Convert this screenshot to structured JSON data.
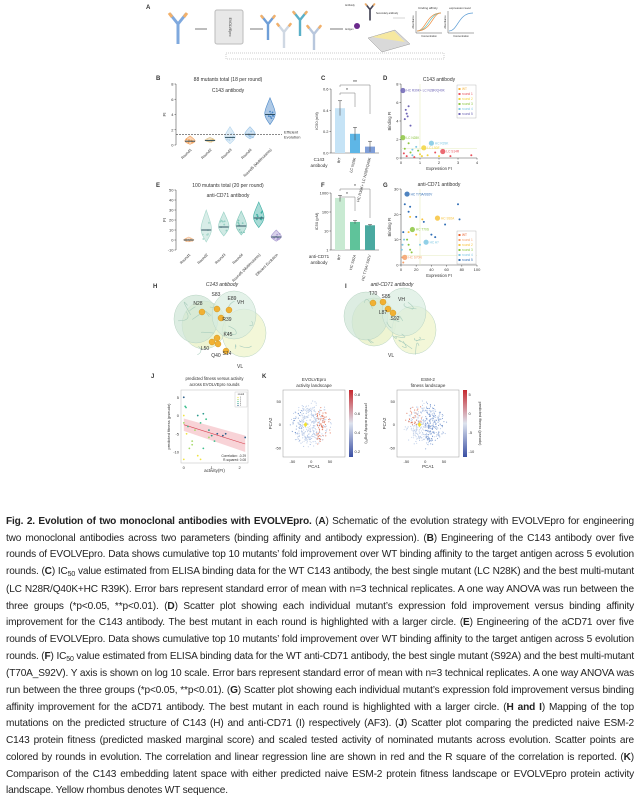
{
  "panels": {
    "A": {
      "label": "A",
      "screen_label": "EVOLVEpro",
      "assay_small": [
        "Antibody",
        "Secondary antibody",
        "Antigen"
      ],
      "plot1_title": "binding affinity",
      "plot2_title": "expression level",
      "plot_xlabel": "Concentration",
      "plot_ylabel": "Absorbance"
    },
    "B": {
      "label": "B",
      "title": "88 mutants total (18 per round)",
      "subtitle": "C143 antibody",
      "ylabel": "FI",
      "threshold_label": [
        "Efficient",
        "Evolution"
      ]
    },
    "C": {
      "label": "C",
      "ylabel": "IC50 (nM)",
      "group_label": [
        "C143",
        "antibody"
      ],
      "sig": [
        "*",
        "**"
      ]
    },
    "D": {
      "label": "D",
      "title": "C143 antibody",
      "xlabel": "Expression FI",
      "ylabel": "Binding FI"
    },
    "E": {
      "label": "E",
      "title": "100 mutants total (20 per round)",
      "subtitle": "anti-CD71 antibody",
      "ylabel": "FI"
    },
    "F": {
      "label": "F",
      "ylabel": "IC50 (pM)",
      "group_label": [
        "anti-CD71",
        "antibody"
      ],
      "sig": [
        "*",
        "*"
      ]
    },
    "G": {
      "label": "G",
      "title": "anti-CD71 antibody",
      "xlabel": "Expression FI",
      "ylabel": "Binding FI"
    },
    "H": {
      "label": "H",
      "title": "C143 antibody",
      "residues": [
        "S83",
        "N28",
        "E89",
        "R39",
        "K45",
        "L50",
        "Q40",
        "S14"
      ],
      "chains": [
        "VH",
        "VL"
      ]
    },
    "I": {
      "label": "I",
      "title": "anti-CD71 antibody",
      "residues": [
        "T70",
        "S85",
        "L87",
        "S92"
      ],
      "chains": [
        "VH",
        "VL"
      ]
    },
    "J": {
      "label": "J",
      "title": [
        "predicted fitness versus activity",
        "across EVOLVEpro rounds"
      ],
      "xlabel": "activity(FI)",
      "ylabel": "predicted fitness (pseudo)",
      "legend_title": "round",
      "stats": [
        "Correlation: -0.29",
        "R-squared: 0.08"
      ]
    },
    "K": {
      "label": "K",
      "left_title": [
        "EVOLVEpro",
        "activity landscape"
      ],
      "right_title": [
        "ESM-2",
        "fitness landscape"
      ],
      "xlabel": "PCA1",
      "ylabel": "PCA2",
      "left_cbar_label": "predicted activity (logFI)",
      "right_cbar_label": "predicted fitness (pseudo)"
    }
  },
  "chart_data": [
    {
      "panel": "B",
      "type": "violin",
      "categories": [
        "Round1",
        "Round2",
        "Round3",
        "Round4",
        "Round5 (Multimutants)"
      ],
      "medians": [
        0.5,
        0.6,
        1.0,
        1.4,
        4.0
      ],
      "maxima": [
        1.2,
        1.0,
        2.4,
        2.4,
        6.2
      ],
      "colors": [
        "#f3a35f",
        "#dcbf86",
        "#b8d7ee",
        "#9cc4e6",
        "#4b88c8"
      ],
      "threshold": 1.4,
      "ylim": [
        0,
        8
      ],
      "yticks": [
        0,
        2,
        4,
        6,
        8
      ]
    },
    {
      "panel": "C",
      "type": "bar",
      "categories": [
        "WT",
        "LC N28K",
        "HC R39K+ LC N28R/Q40K"
      ],
      "values": [
        0.42,
        0.18,
        0.06
      ],
      "errors": [
        0.07,
        0.06,
        0.05
      ],
      "colors": [
        "#c5e3f6",
        "#5eb6e6",
        "#7f9ed8"
      ],
      "ylim": [
        0,
        0.6
      ],
      "yticks": [
        "0.0",
        "0.2",
        "0.4",
        "0.6"
      ]
    },
    {
      "panel": "D",
      "type": "scatter",
      "xlim": [
        0,
        4
      ],
      "ylim": [
        0,
        8
      ],
      "xticks": [
        0,
        1,
        2,
        3,
        4
      ],
      "yticks": [
        0,
        2,
        4,
        6,
        8
      ],
      "legend": [
        "WT",
        "round 1",
        "round 2",
        "round 3",
        "round 4",
        "round 5"
      ],
      "legend_colors": [
        "#f5b33a",
        "#e8505b",
        "#f2d53c",
        "#8cc63f",
        "#7ec8e3",
        "#6c63b5"
      ],
      "highlight": [
        {
          "x": 0.1,
          "y": 7.3,
          "round": 5,
          "label": "HC R39K+ LC N28R/Q40K"
        },
        {
          "x": 0.1,
          "y": 2.2,
          "round": 3,
          "label": "LC N28K"
        },
        {
          "x": 1.6,
          "y": 1.6,
          "round": 4,
          "label": "HC R39K"
        },
        {
          "x": 1.2,
          "y": 1.1,
          "round": 2,
          "label": "LC L50F"
        },
        {
          "x": 2.2,
          "y": 0.7,
          "round": 1,
          "label": "LC S14R"
        }
      ],
      "points": [
        [
          0.2,
          4.2,
          5
        ],
        [
          0.3,
          4.8,
          5
        ],
        [
          0.25,
          5.2,
          5
        ],
        [
          0.35,
          4.5,
          5
        ],
        [
          0.4,
          5.6,
          5
        ],
        [
          0.5,
          3.5,
          5
        ],
        [
          0.2,
          1.0,
          3
        ],
        [
          0.4,
          1.6,
          3
        ],
        [
          0.6,
          0.9,
          4
        ],
        [
          0.8,
          1.2,
          4
        ],
        [
          1.0,
          0.4,
          2
        ],
        [
          0.3,
          0.2,
          1
        ],
        [
          0.7,
          0.1,
          1
        ],
        [
          1.4,
          0.3,
          2
        ],
        [
          1.8,
          0.6,
          1
        ],
        [
          2.6,
          0.2,
          1
        ],
        [
          3.7,
          0.3,
          1
        ],
        [
          0.5,
          0.6,
          3
        ],
        [
          0.9,
          0.8,
          3
        ],
        [
          1.1,
          0.2,
          2
        ],
        [
          0.15,
          0.5,
          1
        ],
        [
          2.0,
          0.2,
          2
        ],
        [
          0.6,
          0.3,
          4
        ]
      ]
    },
    {
      "panel": "E",
      "type": "violin",
      "categories": [
        "Round1",
        "Round2",
        "Round3",
        "Round4",
        "Round5 (Multimutants)",
        "Efficient Evolution"
      ],
      "medians": [
        0,
        10,
        13,
        14,
        22,
        3
      ],
      "maxima": [
        3,
        30,
        28,
        29,
        38,
        10
      ],
      "colors": [
        "#f3b98a",
        "#a8d8cc",
        "#96d0c4",
        "#7fc6b8",
        "#3fb0a4",
        "#a99ad0"
      ],
      "ylim": [
        -10,
        50
      ],
      "yticks": [
        -10,
        0,
        10,
        20,
        30,
        40,
        50
      ]
    },
    {
      "panel": "F",
      "type": "bar",
      "scale": "log10",
      "categories": [
        "WT",
        "HC S92A",
        "HC T70A/ S92V"
      ],
      "values": [
        550,
        30,
        20
      ],
      "errors": [
        200,
        6,
        2
      ],
      "colors": [
        "#c8ead2",
        "#5fc39a",
        "#4aa9a0"
      ],
      "ylim": [
        1,
        1000
      ],
      "yticks": [
        "1",
        "10",
        "100",
        "1000"
      ]
    },
    {
      "panel": "G",
      "type": "scatter",
      "xlim": [
        0,
        100
      ],
      "ylim": [
        0,
        30
      ],
      "xticks": [
        0,
        20,
        40,
        60,
        80,
        100
      ],
      "yticks": [
        0,
        10,
        20,
        30
      ],
      "legend": [
        "WT",
        "round 1",
        "round 2",
        "round 3",
        "round 4",
        "round 5"
      ],
      "legend_colors": [
        "#e8602c",
        "#f5a06a",
        "#f7c33c",
        "#8cc63f",
        "#7ec8e3",
        "#2f6db5"
      ],
      "highlight": [
        {
          "x": 8,
          "y": 28,
          "round": 5,
          "label": "HC T70A/S92V"
        },
        {
          "x": 48,
          "y": 18.5,
          "round": 2,
          "label": "HC S92A"
        },
        {
          "x": 15,
          "y": 14,
          "round": 3,
          "label": "HC T70S"
        },
        {
          "x": 33,
          "y": 9,
          "round": 4,
          "label": "HC A?"
        },
        {
          "x": 5,
          "y": 3,
          "round": 1,
          "label": "HC S70N"
        }
      ],
      "points": [
        [
          5,
          24,
          5
        ],
        [
          10,
          21,
          5
        ],
        [
          12,
          23,
          5
        ],
        [
          20,
          19,
          5
        ],
        [
          30,
          17,
          5
        ],
        [
          40,
          12,
          5
        ],
        [
          75,
          24,
          5
        ],
        [
          77,
          18,
          5
        ],
        [
          58,
          16,
          5
        ],
        [
          12,
          19,
          2
        ],
        [
          28,
          18,
          2
        ],
        [
          10,
          13,
          2
        ],
        [
          8,
          10,
          3
        ],
        [
          10,
          8,
          3
        ],
        [
          12,
          6,
          3
        ],
        [
          14,
          5,
          3
        ],
        [
          3,
          13,
          5
        ],
        [
          4,
          10,
          4
        ],
        [
          2,
          8,
          4
        ],
        [
          25,
          8,
          4
        ],
        [
          2,
          3,
          1
        ],
        [
          3,
          1,
          1
        ],
        [
          1,
          6,
          4
        ],
        [
          20,
          12,
          2
        ],
        [
          45,
          11,
          5
        ]
      ]
    },
    {
      "panel": "J",
      "type": "scatter",
      "xlim": [
        -0.1,
        2.3
      ],
      "ylim": [
        -13,
        7
      ],
      "xticks": [
        0,
        1,
        2
      ],
      "yticks": [
        5,
        0,
        -5,
        -10
      ],
      "legend": [
        "1",
        "2",
        "3",
        "4",
        "5"
      ],
      "legend_colors": [
        "#f0e442",
        "#a6d96a",
        "#3fbf8f",
        "#2c9a8c",
        "#2c5f8a"
      ],
      "regression": {
        "x": [
          0,
          2.2
        ],
        "y": [
          -2.5,
          -7.8
        ]
      },
      "points": [
        [
          0,
          5,
          5
        ],
        [
          0.05,
          2.5,
          3
        ],
        [
          0.08,
          2.2,
          3
        ],
        [
          0,
          0,
          1
        ],
        [
          0,
          -2,
          2
        ],
        [
          0.1,
          -5,
          1
        ],
        [
          0.2,
          -9,
          2
        ],
        [
          0,
          -12,
          1
        ],
        [
          0.3,
          -7,
          2
        ],
        [
          0.5,
          -11,
          1
        ],
        [
          0.6,
          -12,
          1
        ],
        [
          0.5,
          0,
          4
        ],
        [
          0.7,
          0.5,
          4
        ],
        [
          0.6,
          -2,
          3
        ],
        [
          0.8,
          -1,
          3
        ],
        [
          0.9,
          -4,
          4
        ],
        [
          1.0,
          -5.5,
          4
        ],
        [
          1.1,
          -7,
          3
        ],
        [
          1.2,
          -5,
          5
        ],
        [
          1.4,
          -5.5,
          5
        ],
        [
          1.5,
          -5,
          5
        ],
        [
          0.4,
          -4,
          2
        ],
        [
          0.3,
          -8,
          2
        ],
        [
          0.15,
          -3,
          3
        ],
        [
          2.2,
          -6,
          5
        ],
        [
          0.9,
          -6,
          2
        ],
        [
          0.7,
          -9,
          3
        ]
      ]
    },
    {
      "panel": "K-left",
      "type": "scatter",
      "xlim": [
        -75,
        90
      ],
      "ylim": [
        -70,
        75
      ],
      "xticks": [
        -50,
        0,
        50
      ],
      "yticks": [
        50,
        0,
        -50
      ],
      "colorbar": {
        "range": [
          0.2,
          0.8
        ],
        "ticks": [
          "0.8",
          "0.6",
          "0.4",
          "0.2"
        ]
      },
      "wt_marker": {
        "x": -15,
        "y": 0
      }
    },
    {
      "panel": "K-right",
      "type": "scatter",
      "xlim": [
        -75,
        90
      ],
      "ylim": [
        -70,
        75
      ],
      "xticks": [
        -50,
        0,
        50
      ],
      "yticks": [
        50,
        0,
        -50
      ],
      "colorbar": {
        "range": [
          -14,
          7
        ],
        "ticks": [
          "5",
          "0",
          "-5",
          "-10"
        ]
      },
      "wt_marker": {
        "x": -15,
        "y": 0
      }
    }
  ],
  "caption": [
    {
      "t": "Fig. 2. Evolution of two monoclonal antibodies with EVOLVEpro.",
      "b": true
    },
    {
      "t": " ("
    },
    {
      "t": "A",
      "b": true
    },
    {
      "t": ") Schematic of the evolution strategy with EVOLVEpro for engineering two monoclonal antibodies across two parameters (binding affinity and antibody expression). ("
    },
    {
      "t": "B",
      "b": true
    },
    {
      "t": ") Engineering of the C143 antibody over five rounds of EVOLVEpro. Data shows cumulative top 10 mutants’ fold improvement over WT binding affinity to the target antigen across 5 evolution rounds. ("
    },
    {
      "t": "C",
      "b": true
    },
    {
      "t": ") IC"
    },
    {
      "t": "50",
      "s": true
    },
    {
      "t": " value estimated from ELISA binding data for the WT C143 antibody, the best single mutant (LC N28K) and the best multi-mutant (LC N28R/Q40K+HC R39K). Error bars represent standard error of mean with n=3 technical replicates. A one way ANOVA was run between the three groups (*p<0.05, **p<0.01). ("
    },
    {
      "t": "D",
      "b": true
    },
    {
      "t": ") Scatter plot showing each individual mutant’s expression fold improvement versus binding affinity improvement for the C143 antibody. The best mutant in each round is highlighted with a larger circle. ("
    },
    {
      "t": "E",
      "b": true
    },
    {
      "t": ") Engineering of the aCD71 over five rounds of EVOLVEpro. Data shows cumulative top 10 mutants’ fold improvement over WT binding affinity to the target antigen across 5 evolution rounds. ("
    },
    {
      "t": "F",
      "b": true
    },
    {
      "t": ") IC"
    },
    {
      "t": "50",
      "s": true
    },
    {
      "t": " value estimated from ELISA binding data for the WT anti-CD71 antibody, the best single mutant (S92A) and the best multi-mutant (T70A_S92V). Y axis is shown on log 10 scale. Error bars represent standard error of mean with n=3 technical replicates. A one way ANOVA was run between the three groups (*p<0.05, **p<0.01). ("
    },
    {
      "t": "G",
      "b": true
    },
    {
      "t": ") Scatter plot showing each individual mutant’s expression fold improvement versus binding affinity improvement for the aCD71 antibody. The best mutant in each round is highlighted with a larger circle. ("
    },
    {
      "t": "H and I",
      "b": true
    },
    {
      "t": ") Mapping of the top mutations on the predicted structure of C143 (H) and anti-CD71 (I) respectively (AF3). ("
    },
    {
      "t": "J",
      "b": true
    },
    {
      "t": ") Scatter plot comparing the predicted naive ESM-2 C143 protein fitness (predicted masked marginal score) and scaled tested activity of nominated mutants across evolution. Scatter points are colored by rounds in evolution. The correlation and linear regression line are shown in red and the R square of the correlation is reported. ("
    },
    {
      "t": "K",
      "b": true
    },
    {
      "t": ") Comparison of the C143 embedding latent space with either predicted naive ESM-2 protein fitness landscape or EVOLVEpro protein activity landscape. Yellow rhombus denotes WT sequence."
    }
  ]
}
